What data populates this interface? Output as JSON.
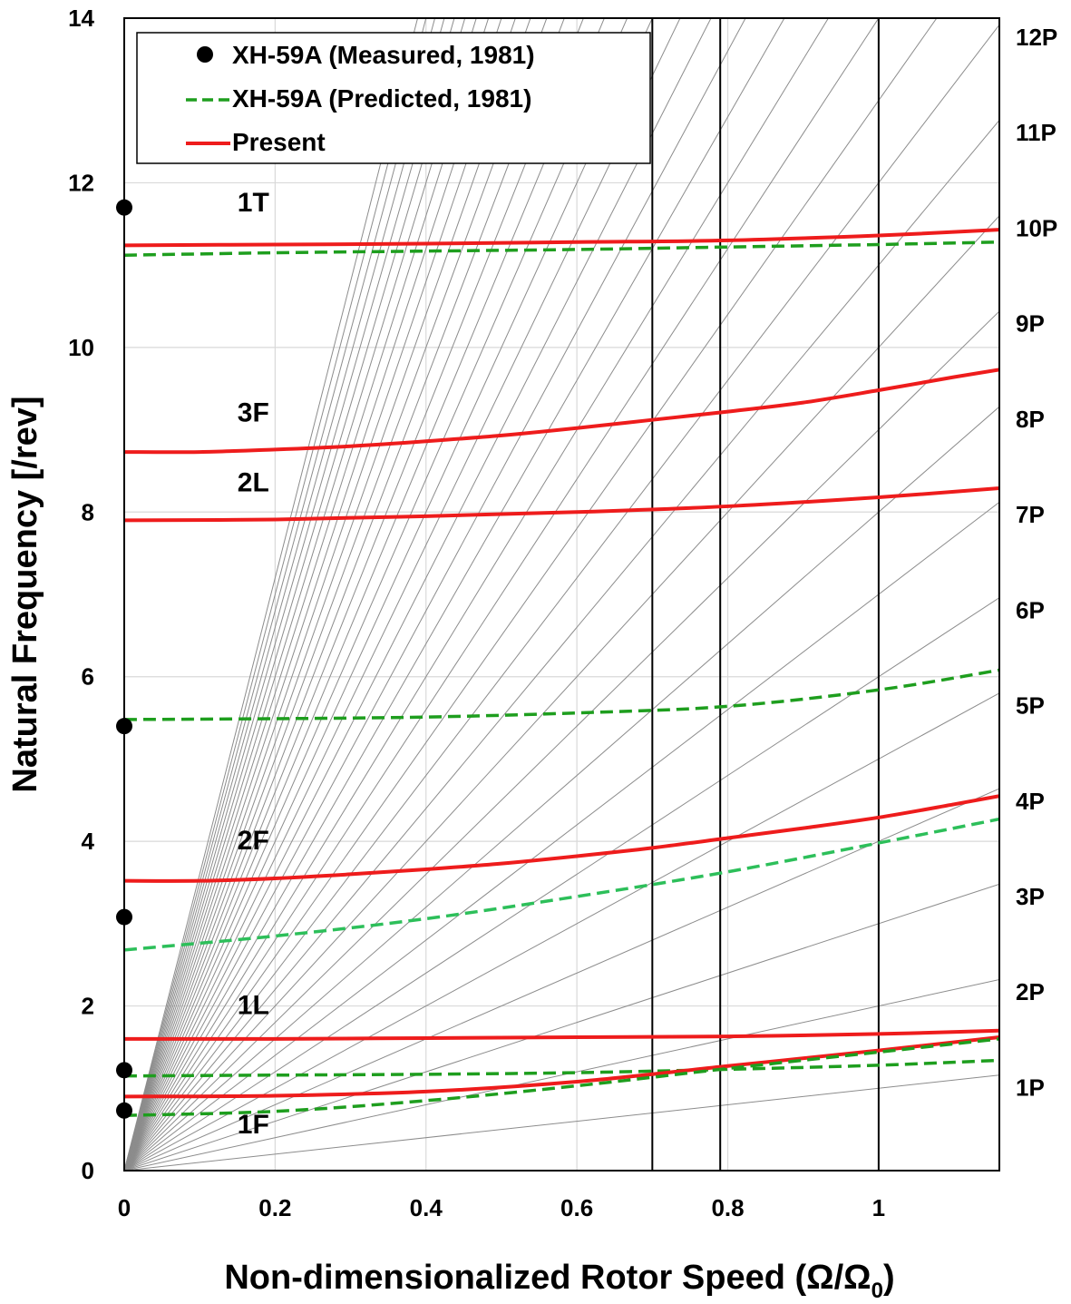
{
  "chart_data": {
    "type": "line",
    "title": "",
    "xlabel": "Non-dimensionalized Rotor Speed (Ω/Ω",
    "xlabel_subscript": "0",
    "xlabel_close": ")",
    "ylabel": "Natural Frequency [/rev]",
    "xlim": [
      0,
      1.16
    ],
    "ylim": [
      0,
      14
    ],
    "x_ticks": [
      0,
      0.2,
      0.4,
      0.6,
      0.8,
      1
    ],
    "x_tick_labels": [
      "0",
      "0.2",
      "0.4",
      "0.6",
      "0.8",
      "1"
    ],
    "y_ticks": [
      0,
      2,
      4,
      6,
      8,
      10,
      12,
      14
    ],
    "y_tick_labels": [
      "0",
      "2",
      "4",
      "6",
      "8",
      "10",
      "12",
      "14"
    ],
    "grid": true,
    "legend": {
      "position": "top-left",
      "entries": [
        {
          "label": "XH-59A (Measured, 1981)",
          "style": "marker",
          "color": "#000000"
        },
        {
          "label": "XH-59A (Predicted, 1981)",
          "style": "dashed",
          "color": "#1e9e1e"
        },
        {
          "label": "Present",
          "style": "solid",
          "color": "#ee1c1c"
        }
      ]
    },
    "operating_speeds": [
      0.7,
      0.79,
      1.0
    ],
    "harmonics": {
      "n_min": 1,
      "n_max": 36,
      "labels": [
        "1P",
        "2P",
        "3P",
        "4P",
        "5P",
        "6P",
        "7P",
        "8P",
        "9P",
        "10P",
        "11P",
        "12P"
      ]
    },
    "series": [
      {
        "name": "Present 1T",
        "mode": "1T",
        "color": "#ee1c1c",
        "style": "solid",
        "x": [
          0,
          0.2,
          0.4,
          0.6,
          0.8,
          1.0,
          1.16
        ],
        "y": [
          11.24,
          11.25,
          11.26,
          11.28,
          11.3,
          11.36,
          11.43
        ]
      },
      {
        "name": "Predicted 1T",
        "mode": "1T",
        "color": "#1e9e1e",
        "style": "dashed",
        "x": [
          0,
          0.2,
          0.4,
          0.6,
          0.8,
          1.0,
          1.16
        ],
        "y": [
          11.12,
          11.15,
          11.17,
          11.19,
          11.22,
          11.25,
          11.28
        ]
      },
      {
        "name": "Present 3F",
        "mode": "3F",
        "color": "#ee1c1c",
        "style": "solid",
        "x": [
          0,
          0.1,
          0.2,
          0.3,
          0.4,
          0.5,
          0.6,
          0.7,
          0.8,
          0.9,
          1.0,
          1.1,
          1.16
        ],
        "y": [
          8.73,
          8.73,
          8.76,
          8.8,
          8.86,
          8.93,
          9.02,
          9.12,
          9.22,
          9.33,
          9.48,
          9.64,
          9.73
        ]
      },
      {
        "name": "Present 2L",
        "mode": "2L",
        "color": "#ee1c1c",
        "style": "solid",
        "x": [
          0,
          0.2,
          0.4,
          0.6,
          0.8,
          1.0,
          1.16
        ],
        "y": [
          7.9,
          7.91,
          7.95,
          8.0,
          8.07,
          8.18,
          8.29
        ]
      },
      {
        "name": "Predicted 5.5",
        "mode": "",
        "color": "#1e9e1e",
        "style": "dashed",
        "x": [
          0,
          0.2,
          0.4,
          0.6,
          0.8,
          1.0,
          1.16
        ],
        "y": [
          5.48,
          5.49,
          5.51,
          5.56,
          5.64,
          5.84,
          6.08
        ]
      },
      {
        "name": "Present 2F",
        "mode": "2F",
        "color": "#ee1c1c",
        "style": "solid",
        "x": [
          0,
          0.1,
          0.2,
          0.3,
          0.4,
          0.5,
          0.6,
          0.7,
          0.8,
          0.9,
          1.0,
          1.1,
          1.16
        ],
        "y": [
          3.52,
          3.52,
          3.55,
          3.6,
          3.66,
          3.73,
          3.82,
          3.92,
          4.04,
          4.16,
          4.29,
          4.45,
          4.55
        ]
      },
      {
        "name": "Predicted 2F",
        "mode": "2F",
        "color": "#2dbf5a",
        "style": "dashed",
        "x": [
          0,
          0.2,
          0.4,
          0.6,
          0.8,
          1.0,
          1.16
        ],
        "y": [
          2.68,
          2.85,
          3.06,
          3.33,
          3.63,
          3.98,
          4.27
        ]
      },
      {
        "name": "Present 1L",
        "mode": "1L",
        "color": "#ee1c1c",
        "style": "solid",
        "x": [
          0,
          0.2,
          0.4,
          0.6,
          0.8,
          1.0,
          1.16
        ],
        "y": [
          1.6,
          1.6,
          1.61,
          1.62,
          1.63,
          1.66,
          1.7
        ]
      },
      {
        "name": "Predicted 1L",
        "mode": "1L",
        "color": "#1e9e1e",
        "style": "dashed",
        "x": [
          0,
          0.2,
          0.4,
          0.6,
          0.8,
          1.0,
          1.16
        ],
        "y": [
          1.15,
          1.16,
          1.17,
          1.19,
          1.23,
          1.28,
          1.34
        ]
      },
      {
        "name": "Present 1F",
        "mode": "1F",
        "color": "#ee1c1c",
        "style": "solid",
        "x": [
          0,
          0.2,
          0.4,
          0.6,
          0.8,
          1.0,
          1.16
        ],
        "y": [
          0.9,
          0.91,
          0.96,
          1.08,
          1.27,
          1.46,
          1.62
        ]
      },
      {
        "name": "Predicted 1F",
        "mode": "1F",
        "color": "#1e9e1e",
        "style": "dashed",
        "x": [
          0,
          0.2,
          0.4,
          0.6,
          0.8,
          1.0,
          1.16
        ],
        "y": [
          0.67,
          0.72,
          0.85,
          1.03,
          1.24,
          1.44,
          1.6
        ]
      }
    ],
    "measured_points": {
      "x": [
        0,
        0,
        0,
        0,
        0
      ],
      "y": [
        11.7,
        5.4,
        3.08,
        1.22,
        0.73
      ]
    },
    "mode_labels": [
      {
        "text": "1T",
        "x": 0.15,
        "y": 11.65
      },
      {
        "text": "3F",
        "x": 0.15,
        "y": 9.1
      },
      {
        "text": "2L",
        "x": 0.15,
        "y": 8.25
      },
      {
        "text": "2F",
        "x": 0.15,
        "y": 3.9
      },
      {
        "text": "1L",
        "x": 0.15,
        "y": 1.9
      },
      {
        "text": "1F",
        "x": 0.15,
        "y": 0.45
      }
    ]
  }
}
